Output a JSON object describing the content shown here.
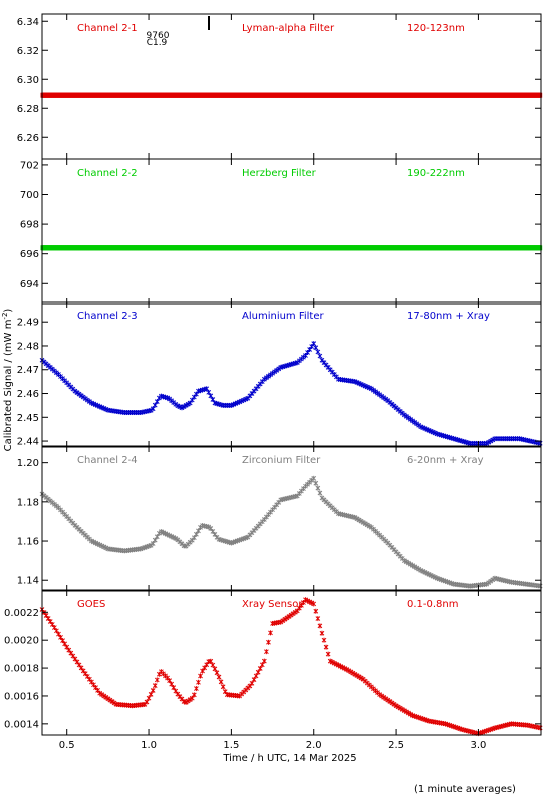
{
  "figure": {
    "ylabel": "Calibrated Signal / (mW m",
    "ylabel_sup": "-2",
    "ylabel_end": ")",
    "xlabel": "Time / h UTC, 14 Mar 2025",
    "footnote": "(1 minute averages)",
    "flare_id": "9760",
    "flare_class": "C1.9"
  },
  "chart_data": [
    {
      "type": "scatter",
      "channel": "Channel 2-1",
      "filter": "Lyman-alpha Filter",
      "band": "120-123nm",
      "color": "#e00000",
      "ylim": [
        6.245,
        6.345
      ],
      "yticks": [
        6.26,
        6.28,
        6.3,
        6.32,
        6.34
      ],
      "yformat": 2,
      "xlim": [
        0.35,
        3.38
      ],
      "x": [
        0.35,
        3.38
      ],
      "y": [
        6.289,
        6.289
      ]
    },
    {
      "type": "scatter",
      "channel": "Channel 2-2",
      "filter": "Herzberg Filter",
      "band": "190-222nm",
      "color": "#00cc00",
      "ylim": [
        692.6,
        702.4
      ],
      "yticks": [
        694,
        696,
        698,
        700,
        702
      ],
      "yformat": 0,
      "xlim": [
        0.35,
        3.38
      ],
      "x": [
        0.35,
        3.38
      ],
      "y": [
        696.4,
        696.4
      ]
    },
    {
      "type": "scatter",
      "channel": "Channel 2-3",
      "filter": "Aluminium Filter",
      "band": "17-80nm + Xray",
      "color": "#0000cc",
      "ylim": [
        2.4375,
        2.4985
      ],
      "yticks": [
        2.44,
        2.45,
        2.46,
        2.47,
        2.48,
        2.49
      ],
      "yformat": 2,
      "xlim": [
        0.35,
        3.38
      ],
      "x": [
        0.35,
        0.45,
        0.55,
        0.65,
        0.75,
        0.85,
        0.95,
        1.02,
        1.07,
        1.12,
        1.17,
        1.2,
        1.25,
        1.3,
        1.35,
        1.4,
        1.45,
        1.5,
        1.6,
        1.7,
        1.8,
        1.9,
        1.95,
        2.0,
        2.05,
        2.15,
        2.25,
        2.35,
        2.45,
        2.55,
        2.65,
        2.75,
        2.85,
        2.95,
        3.05,
        3.1,
        3.15,
        3.25,
        3.38
      ],
      "y": [
        2.474,
        2.468,
        2.461,
        2.456,
        2.453,
        2.452,
        2.452,
        2.453,
        2.459,
        2.458,
        2.455,
        2.454,
        2.456,
        2.461,
        2.462,
        2.456,
        2.455,
        2.455,
        2.458,
        2.466,
        2.471,
        2.473,
        2.476,
        2.481,
        2.474,
        2.466,
        2.465,
        2.462,
        2.457,
        2.451,
        2.446,
        2.443,
        2.441,
        2.439,
        2.439,
        2.441,
        2.441,
        2.441,
        2.439
      ]
    },
    {
      "type": "scatter",
      "channel": "Channel 2-4",
      "filter": "Zirconium Filter",
      "band": "6-20nm + Xray",
      "color": "#808080",
      "ylim": [
        1.1345,
        1.2085
      ],
      "yticks": [
        1.14,
        1.16,
        1.18,
        1.2
      ],
      "yformat": 2,
      "xlim": [
        0.35,
        3.38
      ],
      "x": [
        0.35,
        0.45,
        0.55,
        0.65,
        0.75,
        0.85,
        0.95,
        1.02,
        1.07,
        1.12,
        1.17,
        1.22,
        1.27,
        1.32,
        1.37,
        1.42,
        1.5,
        1.6,
        1.7,
        1.8,
        1.9,
        1.95,
        2.0,
        2.05,
        2.15,
        2.25,
        2.35,
        2.45,
        2.55,
        2.65,
        2.75,
        2.85,
        2.95,
        3.05,
        3.1,
        3.2,
        3.38
      ],
      "y": [
        1.184,
        1.177,
        1.168,
        1.16,
        1.156,
        1.155,
        1.156,
        1.158,
        1.165,
        1.163,
        1.161,
        1.157,
        1.161,
        1.168,
        1.167,
        1.161,
        1.159,
        1.162,
        1.171,
        1.181,
        1.183,
        1.188,
        1.192,
        1.182,
        1.174,
        1.172,
        1.167,
        1.159,
        1.15,
        1.145,
        1.141,
        1.138,
        1.137,
        1.138,
        1.141,
        1.139,
        1.137
      ]
    },
    {
      "type": "scatter",
      "channel": "GOES",
      "filter": "Xray Sensor",
      "band": "0.1-0.8nm",
      "color": "#e00000",
      "ylim": [
        0.00132,
        0.00236
      ],
      "yticks": [
        0.0014,
        0.0016,
        0.0018,
        0.002,
        0.0022
      ],
      "yformat": 4,
      "xlim": [
        0.35,
        3.38
      ],
      "x": [
        0.35,
        0.42,
        0.5,
        0.6,
        0.7,
        0.8,
        0.9,
        0.98,
        1.03,
        1.07,
        1.12,
        1.17,
        1.22,
        1.27,
        1.32,
        1.37,
        1.42,
        1.47,
        1.55,
        1.62,
        1.7,
        1.75,
        1.8,
        1.9,
        1.95,
        2.0,
        2.05,
        2.1,
        2.2,
        2.3,
        2.4,
        2.5,
        2.6,
        2.7,
        2.8,
        2.9,
        3.0,
        3.1,
        3.2,
        3.3,
        3.38
      ],
      "y": [
        0.00222,
        0.0021,
        0.00195,
        0.00178,
        0.00162,
        0.00154,
        0.00153,
        0.00154,
        0.00165,
        0.00178,
        0.00172,
        0.00162,
        0.00155,
        0.00159,
        0.00177,
        0.00186,
        0.00175,
        0.00161,
        0.0016,
        0.00168,
        0.00185,
        0.00212,
        0.00213,
        0.00221,
        0.00229,
        0.00226,
        0.00205,
        0.00185,
        0.00179,
        0.00172,
        0.00161,
        0.00153,
        0.00146,
        0.00142,
        0.0014,
        0.00136,
        0.00133,
        0.00137,
        0.0014,
        0.00139,
        0.00137
      ]
    }
  ],
  "xaxis": {
    "ticks": [
      0.5,
      1.0,
      1.5,
      2.0,
      2.5,
      3.0
    ],
    "xlim": [
      0.35,
      3.38
    ]
  }
}
